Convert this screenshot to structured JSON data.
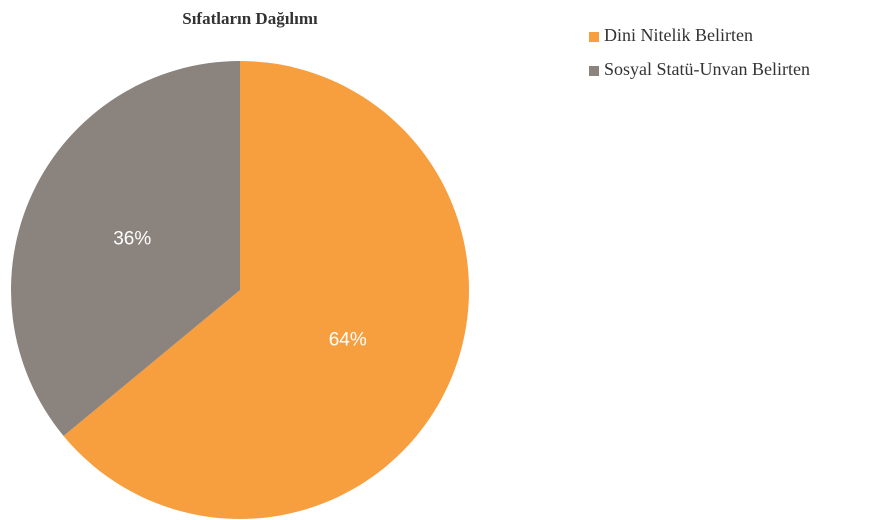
{
  "chart_data": {
    "type": "pie",
    "title": "Sıfatların Dağılımı",
    "categories": [
      "Dini Nitelik Belirten",
      "Sosyal Statü-Unvan Belirten"
    ],
    "values": [
      64,
      36
    ],
    "value_labels": [
      "64%",
      "36%"
    ],
    "colors": [
      "#f79f3f",
      "#8b837e"
    ],
    "legend": "right"
  }
}
